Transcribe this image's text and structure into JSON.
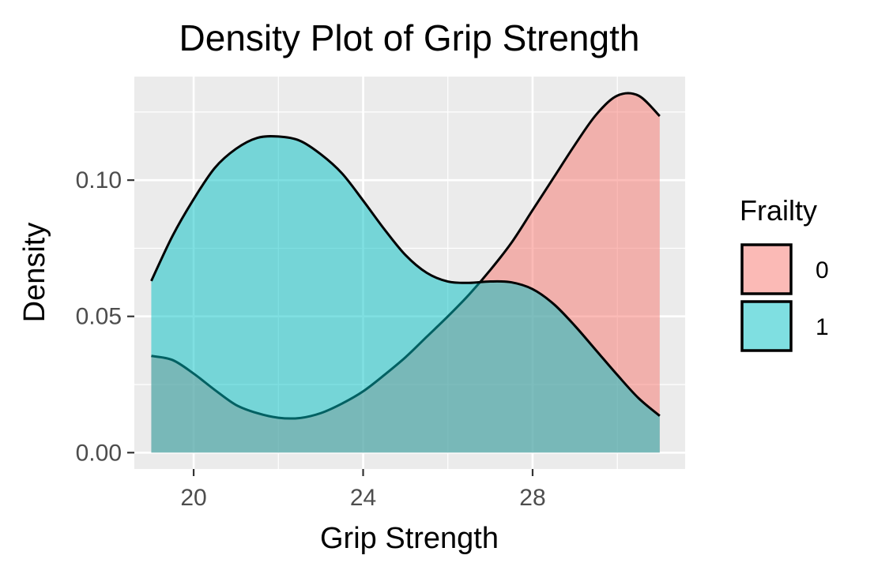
{
  "chart_data": {
    "type": "area",
    "title": "Density Plot of Grip Strength",
    "xlabel": "Grip Strength",
    "ylabel": "Density",
    "xlim": [
      18.6,
      31.6
    ],
    "ylim": [
      -0.006,
      0.138
    ],
    "x_ticks": [
      20,
      24,
      28
    ],
    "x_tick_labels": [
      "20",
      "24",
      "28"
    ],
    "y_ticks": [
      0.0,
      0.05,
      0.1
    ],
    "y_tick_labels": [
      "0.00",
      "0.05",
      "0.10"
    ],
    "grid": true,
    "legend": {
      "title": "Frailty",
      "position": "right"
    },
    "series": [
      {
        "name": "0",
        "color": "#F8766D",
        "x": [
          19.0,
          19.5,
          20.0,
          20.5,
          21.0,
          21.5,
          22.0,
          22.5,
          23.0,
          23.5,
          24.0,
          24.5,
          25.0,
          25.5,
          26.0,
          26.5,
          27.0,
          27.5,
          28.0,
          28.5,
          29.0,
          29.5,
          30.0,
          30.5,
          31.0
        ],
        "values": [
          0.0355,
          0.034,
          0.029,
          0.023,
          0.0175,
          0.0145,
          0.0128,
          0.0127,
          0.0145,
          0.018,
          0.0225,
          0.0285,
          0.035,
          0.0425,
          0.05,
          0.058,
          0.067,
          0.077,
          0.089,
          0.101,
          0.113,
          0.124,
          0.131,
          0.131,
          0.1235
        ]
      },
      {
        "name": "1",
        "color": "#00BFC4",
        "x": [
          19.0,
          19.5,
          20.0,
          20.5,
          21.0,
          21.5,
          22.0,
          22.5,
          23.0,
          23.5,
          24.0,
          24.5,
          25.0,
          25.5,
          26.0,
          26.5,
          27.0,
          27.5,
          28.0,
          28.5,
          29.0,
          29.5,
          30.0,
          30.5,
          31.0
        ],
        "values": [
          0.063,
          0.0795,
          0.093,
          0.1045,
          0.1115,
          0.1155,
          0.116,
          0.1145,
          0.1095,
          0.1025,
          0.0925,
          0.082,
          0.0725,
          0.066,
          0.0628,
          0.0623,
          0.0628,
          0.0625,
          0.06,
          0.0545,
          0.0465,
          0.0375,
          0.0285,
          0.02,
          0.0135
        ]
      }
    ]
  }
}
